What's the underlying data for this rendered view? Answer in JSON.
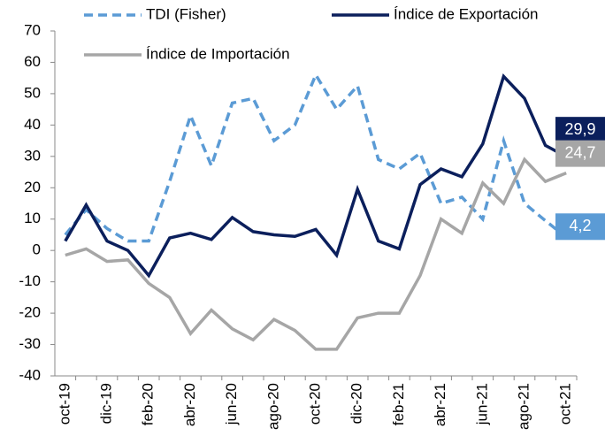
{
  "chart_data": {
    "type": "line",
    "categories": [
      "oct-19",
      null,
      "dic-19",
      null,
      "feb-20",
      null,
      "abr-20",
      null,
      "jun-20",
      null,
      "ago-20",
      null,
      "oct-20",
      null,
      "dic-20",
      null,
      "feb-21",
      null,
      "abr-21",
      null,
      "jun-21",
      null,
      "ago-21",
      null,
      "oct-21"
    ],
    "series": [
      {
        "name": "TDI  (Fisher)",
        "color": "#5b9bd5",
        "dashed": true,
        "values": [
          5,
          13,
          7,
          3,
          3,
          22,
          43,
          27,
          47,
          48.5,
          35,
          40,
          56,
          45,
          52.5,
          29,
          26,
          31,
          15,
          17,
          10,
          35,
          15,
          9.5,
          4.2
        ],
        "value_labels": [
          null,
          null,
          null,
          null,
          null,
          null,
          null,
          null,
          null,
          null,
          null,
          null,
          null,
          null,
          null,
          null,
          null,
          null,
          null,
          null,
          null,
          null,
          null,
          null,
          "4,2"
        ]
      },
      {
        "name": "Índice de Exportación",
        "color": "#0b1f5c",
        "dashed": false,
        "values": [
          3,
          14.5,
          3,
          0,
          -8,
          4,
          5.5,
          3.5,
          10.5,
          6,
          5,
          4.5,
          6.7,
          -1.5,
          19.5,
          3,
          0.5,
          21,
          26,
          23.5,
          34,
          55.5,
          48.5,
          33.5,
          29.9
        ],
        "value_labels": [
          null,
          null,
          null,
          null,
          null,
          null,
          null,
          null,
          null,
          null,
          null,
          null,
          null,
          null,
          null,
          null,
          null,
          null,
          null,
          null,
          null,
          null,
          null,
          null,
          "29,9"
        ]
      },
      {
        "name": "Índice de Importación",
        "color": "#a6a6a6",
        "dashed": false,
        "values": [
          -1.5,
          0.5,
          -3.5,
          -3,
          -10.5,
          -15,
          -26.5,
          -19,
          -25,
          -28.5,
          -22,
          -25.5,
          -31.5,
          -31.5,
          -21.5,
          -20,
          -20,
          -8,
          10,
          5.5,
          21.5,
          15,
          29,
          22,
          24.7
        ],
        "value_labels": [
          null,
          null,
          null,
          null,
          null,
          null,
          null,
          null,
          null,
          null,
          null,
          null,
          null,
          null,
          null,
          null,
          null,
          null,
          null,
          null,
          null,
          null,
          null,
          null,
          "24,7"
        ]
      }
    ],
    "ylim": [
      -40,
      70
    ],
    "yticks": [
      -40,
      -30,
      -20,
      -10,
      0,
      10,
      20,
      30,
      40,
      50,
      60,
      70
    ]
  }
}
